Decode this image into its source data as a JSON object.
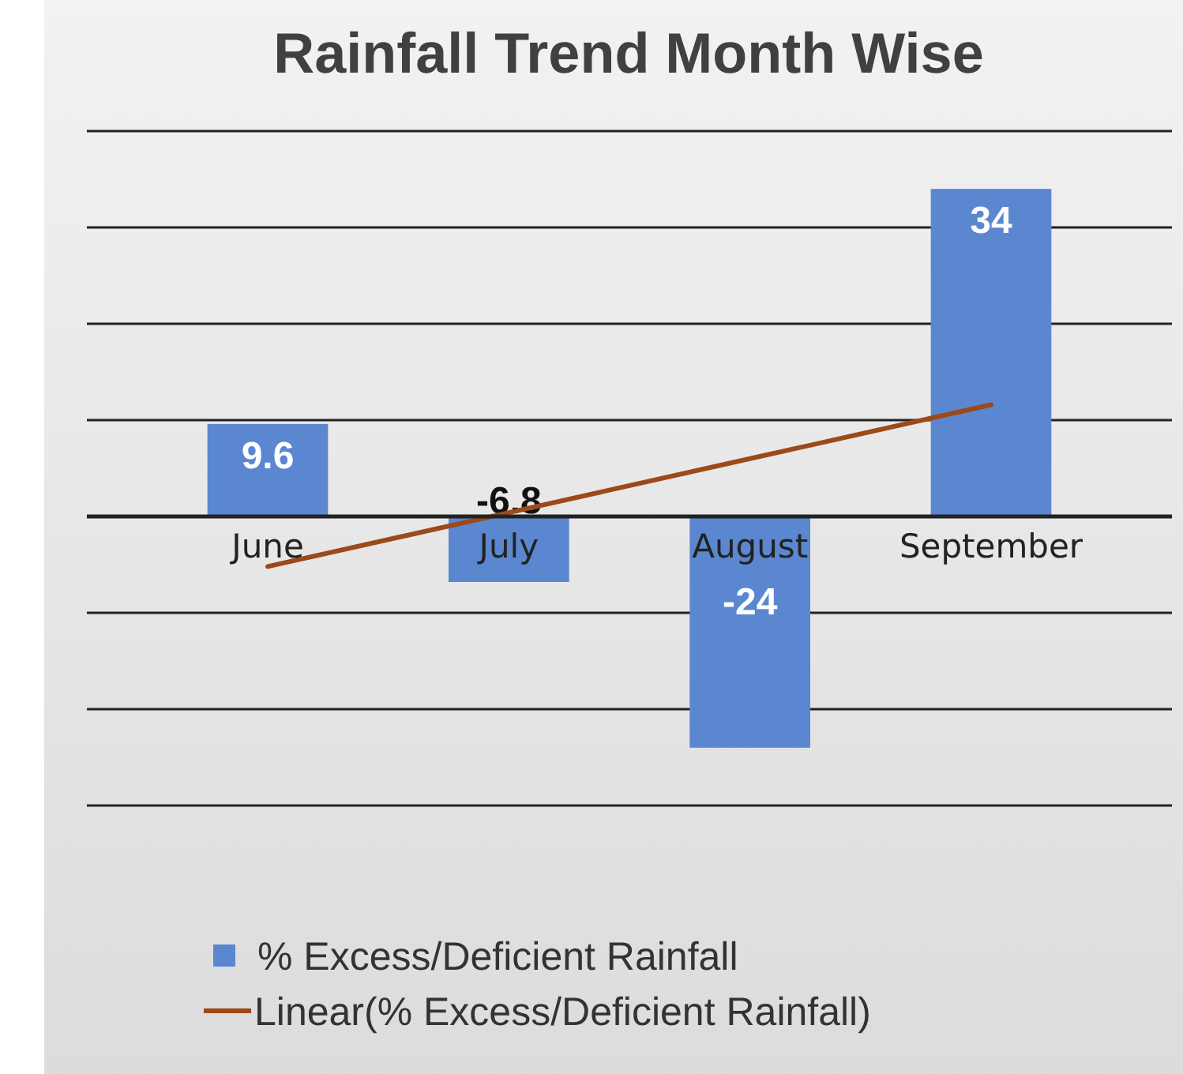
{
  "chart_data": {
    "type": "bar",
    "title": "Rainfall Trend Month Wise",
    "categories": [
      "June",
      "July",
      "August",
      "September"
    ],
    "series": [
      {
        "name": "% Excess/Deficient Rainfall",
        "color": "#5b87d0",
        "values": [
          9.6,
          -6.8,
          -24,
          34
        ],
        "value_labels": [
          "9.6",
          "-6.8",
          "-24",
          "34"
        ]
      },
      {
        "name": "Linear(% Excess/Deficient Rainfall)",
        "type": "line",
        "color": "#9c4a1a",
        "values": [
          -5.2,
          0.4,
          6.0,
          11.6
        ]
      }
    ],
    "ylim": [
      -30,
      40
    ],
    "yticks": [
      {
        "value": -30,
        "label": null
      },
      {
        "value": -20,
        "label": null
      },
      {
        "value": -10,
        "label": null
      },
      {
        "value": 0,
        "label": null
      },
      {
        "value": 10,
        "label": null
      },
      {
        "value": 20,
        "label": null
      },
      {
        "value": 30,
        "label": null
      },
      {
        "value": 40,
        "label": null
      }
    ],
    "grid": "y",
    "legend": "bottom",
    "tick_labels": "x"
  }
}
